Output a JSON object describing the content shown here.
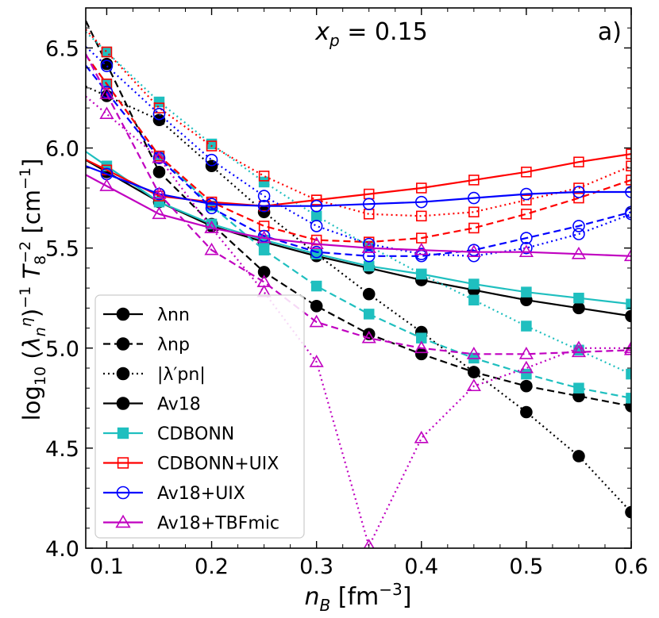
{
  "chart_data": {
    "type": "line",
    "panel_label": "a)",
    "annotation": "x_p = 0.15",
    "xlabel": "n_B [fm^-3]",
    "ylabel": "log10 (lambda_n^eta)^-1 T_8^-2 [cm^-1]",
    "xlim": [
      0.08,
      0.6
    ],
    "ylim": [
      4.0,
      6.7
    ],
    "xticks": [
      "0.1",
      "0.2",
      "0.3",
      "0.4",
      "0.5",
      "0.6"
    ],
    "yticks": [
      "4.0",
      "4.5",
      "5.0",
      "5.5",
      "6.0",
      "6.5"
    ],
    "legend": {
      "position": "bottom-left",
      "styles": [
        {
          "label": "λnn",
          "dash": "solid"
        },
        {
          "label": "λnp",
          "dash": "dashed"
        },
        {
          "label": "|λ′pn|",
          "dash": "dotted"
        }
      ],
      "models": [
        {
          "label": "Av18",
          "color": "#000000",
          "marker": "circle",
          "filled": true
        },
        {
          "label": "CDBONN",
          "color": "#1fbfbf",
          "marker": "square",
          "filled": true
        },
        {
          "label": "CDBONN+UIX",
          "color": "#ff0000",
          "marker": "square",
          "filled": false
        },
        {
          "label": "Av18+UIX",
          "color": "#0000ff",
          "marker": "circle",
          "filled": false
        },
        {
          "label": "Av18+TBFmic",
          "color": "#c000c0",
          "marker": "triangle",
          "filled": false
        }
      ]
    },
    "x": [
      0.1,
      0.15,
      0.2,
      0.25,
      0.3,
      0.35,
      0.4,
      0.45,
      0.5,
      0.55,
      0.6
    ],
    "series": [
      {
        "model": "Av18",
        "quantity": "λnn",
        "dash": "solid",
        "values": [
          5.88,
          5.73,
          5.61,
          5.53,
          5.46,
          5.4,
          5.34,
          5.29,
          5.24,
          5.2,
          5.16
        ]
      },
      {
        "model": "Av18",
        "quantity": "λnp",
        "dash": "dashed",
        "values": [
          6.42,
          5.88,
          5.62,
          5.38,
          5.21,
          5.07,
          4.97,
          4.88,
          4.81,
          4.76,
          4.71
        ]
      },
      {
        "model": "Av18",
        "quantity": "|λ′pn|",
        "dash": "dotted",
        "values": [
          6.26,
          6.14,
          5.91,
          5.68,
          5.47,
          5.27,
          5.08,
          4.88,
          4.68,
          4.46,
          4.18
        ]
      },
      {
        "model": "CDBONN",
        "quantity": "λnn",
        "dash": "solid",
        "values": [
          5.91,
          5.73,
          5.62,
          5.54,
          5.47,
          5.41,
          5.37,
          5.32,
          5.28,
          5.25,
          5.22
        ]
      },
      {
        "model": "CDBONN",
        "quantity": "λnp",
        "dash": "dashed",
        "values": [
          6.32,
          5.96,
          5.71,
          5.49,
          5.31,
          5.17,
          5.05,
          4.95,
          4.87,
          4.8,
          4.75
        ]
      },
      {
        "model": "CDBONN",
        "quantity": "|λ′pn|",
        "dash": "dotted",
        "values": [
          6.48,
          6.23,
          6.02,
          5.83,
          5.66,
          5.51,
          5.37,
          5.24,
          5.11,
          4.99,
          4.87
        ]
      },
      {
        "model": "CDBONN+UIX",
        "quantity": "λnn",
        "dash": "solid",
        "values": [
          5.89,
          5.76,
          5.73,
          5.71,
          5.74,
          5.77,
          5.8,
          5.84,
          5.88,
          5.93,
          5.97
        ]
      },
      {
        "model": "CDBONN+UIX",
        "quantity": "λnp",
        "dash": "dashed",
        "values": [
          6.32,
          5.96,
          5.73,
          5.61,
          5.54,
          5.53,
          5.55,
          5.6,
          5.67,
          5.75,
          5.84
        ]
      },
      {
        "model": "CDBONN+UIX",
        "quantity": "|λ′pn|",
        "dash": "dotted",
        "values": [
          6.48,
          6.2,
          6.01,
          5.86,
          5.74,
          5.67,
          5.66,
          5.68,
          5.74,
          5.8,
          5.91
        ]
      },
      {
        "model": "Av18+UIX",
        "quantity": "λnn",
        "dash": "solid",
        "values": [
          5.87,
          5.77,
          5.72,
          5.71,
          5.71,
          5.72,
          5.73,
          5.75,
          5.77,
          5.78,
          5.78
        ]
      },
      {
        "model": "Av18+UIX",
        "quantity": "λnp",
        "dash": "dashed",
        "values": [
          6.28,
          5.95,
          5.7,
          5.56,
          5.48,
          5.46,
          5.46,
          5.49,
          5.55,
          5.61,
          5.68
        ]
      },
      {
        "model": "Av18+UIX",
        "quantity": "|λ′pn|",
        "dash": "dotted",
        "values": [
          6.41,
          6.17,
          5.94,
          5.76,
          5.61,
          5.52,
          5.47,
          5.46,
          5.5,
          5.57,
          5.67
        ]
      },
      {
        "model": "Av18+TBFmic",
        "quantity": "λnn",
        "dash": "solid",
        "values": [
          5.81,
          5.67,
          5.6,
          5.55,
          5.52,
          5.5,
          5.49,
          5.48,
          5.48,
          5.47,
          5.46
        ]
      },
      {
        "model": "Av18+TBFmic",
        "quantity": "λnp",
        "dash": "dashed",
        "values": [
          6.27,
          5.77,
          5.49,
          5.33,
          5.13,
          5.05,
          5.0,
          4.97,
          4.97,
          4.98,
          4.99
        ]
      },
      {
        "model": "Av18+TBFmic",
        "quantity": "|λ′pn|",
        "dash": "dotted",
        "values": [
          6.17,
          5.95,
          5.6,
          5.28,
          4.93,
          4.01,
          4.55,
          4.81,
          4.9,
          5.0,
          5.0
        ]
      }
    ]
  }
}
